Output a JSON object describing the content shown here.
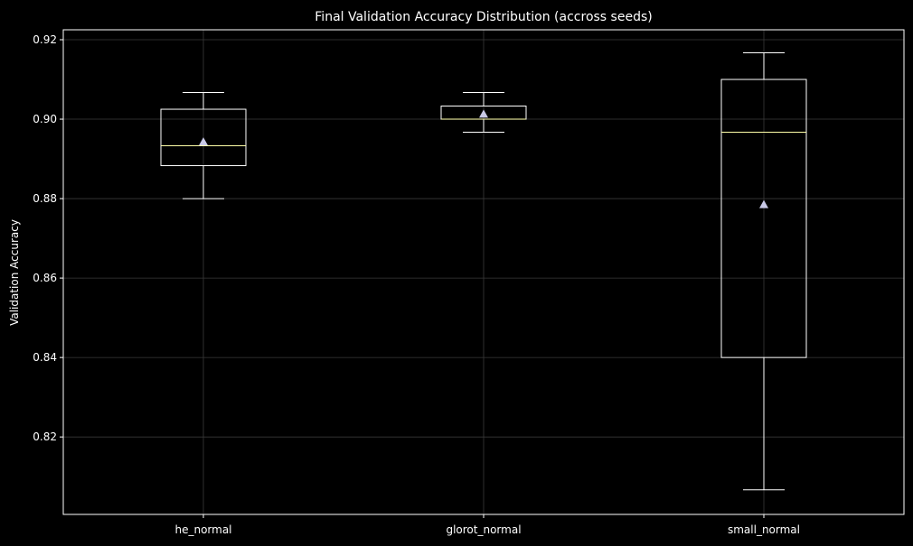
{
  "chart_data": {
    "type": "box",
    "title": "Final Validation Accuracy Distribution (accross seeds)",
    "xlabel": "",
    "ylabel": "Validation Accuracy",
    "ylim": [
      0.8005,
      0.9225
    ],
    "yticks": [
      0.82,
      0.84,
      0.86,
      0.88,
      0.9,
      0.92
    ],
    "ytick_labels": [
      "0.82",
      "0.84",
      "0.86",
      "0.88",
      "0.90",
      "0.92"
    ],
    "grid": true,
    "categories": [
      "he_normal",
      "glorot_normal",
      "small_normal"
    ],
    "boxes": [
      {
        "category": "he_normal",
        "whisker_low": 0.88,
        "q1": 0.8883,
        "median": 0.8933,
        "q3": 0.9025,
        "whisker_high": 0.9067,
        "mean": 0.8943
      },
      {
        "category": "glorot_normal",
        "whisker_low": 0.8967,
        "q1": 0.9,
        "median": 0.9,
        "q3": 0.9033,
        "whisker_high": 0.9067,
        "mean": 0.9013
      },
      {
        "category": "small_normal",
        "whisker_low": 0.8067,
        "q1": 0.84,
        "median": 0.8967,
        "q3": 0.91,
        "whisker_high": 0.9167,
        "mean": 0.8785
      }
    ],
    "colors": {
      "background": "#000000",
      "box": "#ffffff",
      "median": "#ffffa8",
      "mean_marker": "#c8c8e6",
      "grid": "#3a3a3a",
      "axes": "#ffffff"
    }
  }
}
